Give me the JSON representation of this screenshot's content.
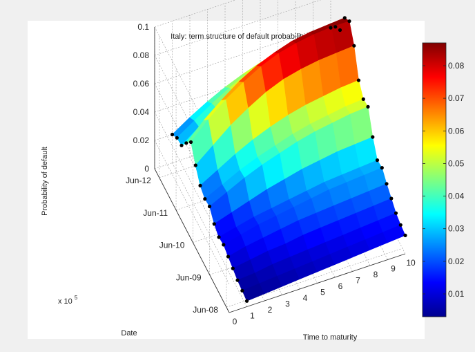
{
  "chart_data": {
    "type": "surface",
    "title": "Italy: term structure of default probability",
    "xlabel": "Time to maturity",
    "ylabel": "Date",
    "zlabel": "Probability of default",
    "y_exponent_label": "x 10",
    "y_exponent_sup": "5",
    "xlim": [
      0,
      10
    ],
    "zlim": [
      0,
      0.1
    ],
    "x_ticks": [
      "0",
      "1",
      "2",
      "3",
      "4",
      "5",
      "6",
      "7",
      "8",
      "9",
      "10"
    ],
    "z_ticks": [
      "0",
      "0.02",
      "0.04",
      "0.06",
      "0.08",
      "0.1"
    ],
    "date_ticks": [
      "Jun-08",
      "Jun-09",
      "Jun-10",
      "Jun-11",
      "Jun-12"
    ],
    "colorbar": {
      "range": [
        0.003,
        0.087
      ],
      "ticks": [
        "0.01",
        "0.02",
        "0.03",
        "0.04",
        "0.05",
        "0.06",
        "0.07",
        "0.08"
      ]
    },
    "grid": true,
    "colormap": "jet",
    "maturities": [
      1,
      2,
      3,
      4,
      5,
      6,
      7,
      8,
      9,
      10
    ],
    "dates": [
      0,
      0.25,
      0.5,
      0.75,
      1,
      1.25,
      1.5,
      1.75,
      2,
      2.25,
      2.5,
      2.75,
      3,
      3.25,
      3.5,
      3.75,
      4
    ],
    "z_values": [
      [
        0.004,
        0.005,
        0.006,
        0.007,
        0.008,
        0.009,
        0.01,
        0.011,
        0.012,
        0.013
      ],
      [
        0.005,
        0.006,
        0.007,
        0.008,
        0.009,
        0.01,
        0.011,
        0.012,
        0.013,
        0.014
      ],
      [
        0.006,
        0.007,
        0.009,
        0.01,
        0.011,
        0.012,
        0.013,
        0.014,
        0.015,
        0.016
      ],
      [
        0.008,
        0.01,
        0.012,
        0.013,
        0.015,
        0.016,
        0.017,
        0.018,
        0.019,
        0.02
      ],
      [
        0.01,
        0.013,
        0.015,
        0.017,
        0.019,
        0.02,
        0.021,
        0.022,
        0.023,
        0.024
      ],
      [
        0.012,
        0.015,
        0.018,
        0.02,
        0.022,
        0.024,
        0.026,
        0.027,
        0.028,
        0.029
      ],
      [
        0.011,
        0.014,
        0.017,
        0.019,
        0.021,
        0.023,
        0.025,
        0.026,
        0.027,
        0.028
      ],
      [
        0.014,
        0.018,
        0.022,
        0.026,
        0.029,
        0.032,
        0.034,
        0.036,
        0.037,
        0.038
      ],
      [
        0.02,
        0.026,
        0.032,
        0.037,
        0.041,
        0.045,
        0.048,
        0.05,
        0.052,
        0.053
      ],
      [
        0.019,
        0.025,
        0.031,
        0.036,
        0.04,
        0.044,
        0.047,
        0.049,
        0.051,
        0.052
      ],
      [
        0.022,
        0.029,
        0.036,
        0.042,
        0.047,
        0.051,
        0.054,
        0.056,
        0.058,
        0.059
      ],
      [
        0.03,
        0.04,
        0.05,
        0.058,
        0.065,
        0.07,
        0.073,
        0.075,
        0.076,
        0.077
      ],
      [
        0.04,
        0.052,
        0.062,
        0.07,
        0.077,
        0.082,
        0.085,
        0.087,
        0.088,
        0.088
      ],
      [
        0.033,
        0.045,
        0.055,
        0.064,
        0.071,
        0.076,
        0.08,
        0.082,
        0.083,
        0.084
      ],
      [
        0.025,
        0.034,
        0.043,
        0.05,
        0.056,
        0.061,
        0.064,
        0.066,
        0.068,
        0.069
      ],
      [
        0.024,
        0.032,
        0.04,
        0.047,
        0.053,
        0.057,
        0.06,
        0.062,
        0.064,
        0.065
      ],
      [
        0.02,
        0.028,
        0.035,
        0.041,
        0.046,
        0.05,
        0.053,
        0.055,
        0.057,
        0.058
      ]
    ]
  }
}
